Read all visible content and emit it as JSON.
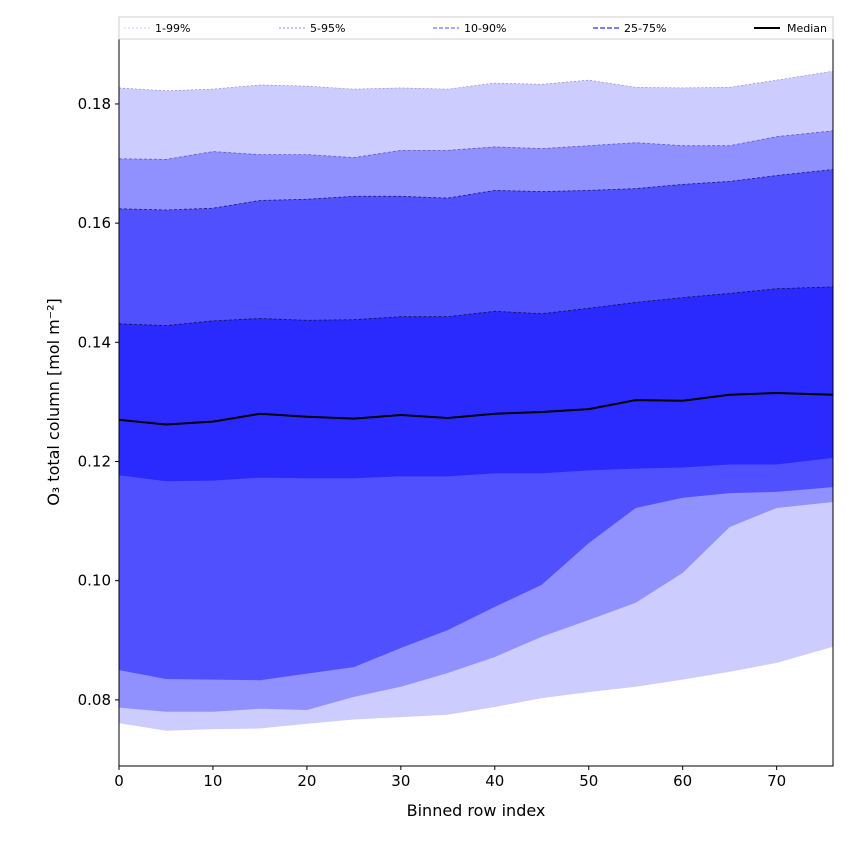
{
  "chart_data": {
    "type": "area",
    "title": "",
    "xlabel": "Binned row index",
    "ylabel": "O₃ total column [mol m⁻²]",
    "xlim": [
      0,
      76
    ],
    "ylim": [
      0.0689,
      0.1909
    ],
    "xticks": [
      0,
      10,
      20,
      30,
      40,
      50,
      60,
      70
    ],
    "xtick_labels": [
      "0",
      "10",
      "20",
      "30",
      "40",
      "50",
      "60",
      "70"
    ],
    "yticks": [
      0.08,
      0.1,
      0.12,
      0.14,
      0.16,
      0.18
    ],
    "ytick_labels": [
      "0.08",
      "0.10",
      "0.12",
      "0.14",
      "0.16",
      "0.18"
    ],
    "grid": false,
    "legend_placement": "top",
    "legend": [
      {
        "label": "1-99%",
        "color": "#ccccff"
      },
      {
        "label": "5-95%",
        "color": "#9090ff"
      },
      {
        "label": "10-90%",
        "color": "#5050ff"
      },
      {
        "label": "25-75%",
        "color": "#2a2aff"
      },
      {
        "label": "Median",
        "color": "#000000"
      }
    ],
    "x": [
      0,
      5,
      10,
      15,
      20,
      25,
      30,
      35,
      40,
      45,
      50,
      55,
      60,
      65,
      70,
      76
    ],
    "series": {
      "p1": [
        0.0761,
        0.0748,
        0.0751,
        0.0752,
        0.076,
        0.0767,
        0.0771,
        0.0775,
        0.0788,
        0.0803,
        0.0813,
        0.0822,
        0.0834,
        0.0847,
        0.0862,
        0.0889
      ],
      "p5": [
        0.0787,
        0.078,
        0.078,
        0.0785,
        0.0783,
        0.0805,
        0.0822,
        0.0845,
        0.0872,
        0.0906,
        0.0934,
        0.0963,
        0.1013,
        0.109,
        0.1122,
        0.1132
      ],
      "p10": [
        0.085,
        0.0835,
        0.0834,
        0.0833,
        0.0844,
        0.0855,
        0.0887,
        0.0917,
        0.0956,
        0.0993,
        0.1063,
        0.1122,
        0.1139,
        0.1147,
        0.1149,
        0.1157
      ],
      "p25": [
        0.1177,
        0.1167,
        0.1168,
        0.1173,
        0.1172,
        0.1172,
        0.1175,
        0.1175,
        0.118,
        0.118,
        0.1185,
        0.1188,
        0.119,
        0.1195,
        0.1195,
        0.1206
      ],
      "median": [
        0.127,
        0.1262,
        0.1267,
        0.128,
        0.1275,
        0.1272,
        0.1278,
        0.1273,
        0.128,
        0.1283,
        0.1288,
        0.1303,
        0.1302,
        0.1312,
        0.1315,
        0.1312
      ],
      "p75": [
        0.1431,
        0.1428,
        0.1436,
        0.144,
        0.1437,
        0.1438,
        0.1443,
        0.1443,
        0.1452,
        0.1448,
        0.1457,
        0.1467,
        0.1475,
        0.1482,
        0.149,
        0.1493
      ],
      "p90": [
        0.1624,
        0.1622,
        0.1625,
        0.1638,
        0.164,
        0.1645,
        0.1645,
        0.1642,
        0.1655,
        0.1653,
        0.1655,
        0.1658,
        0.1665,
        0.167,
        0.168,
        0.169
      ],
      "p95": [
        0.1708,
        0.1707,
        0.172,
        0.1715,
        0.1715,
        0.171,
        0.1722,
        0.1722,
        0.1728,
        0.1725,
        0.173,
        0.1735,
        0.173,
        0.173,
        0.1745,
        0.1755
      ],
      "p99": [
        0.1827,
        0.1822,
        0.1825,
        0.1832,
        0.183,
        0.1825,
        0.1827,
        0.1825,
        0.1835,
        0.1833,
        0.184,
        0.1828,
        0.1827,
        0.1828,
        0.184,
        0.1855
      ]
    }
  }
}
